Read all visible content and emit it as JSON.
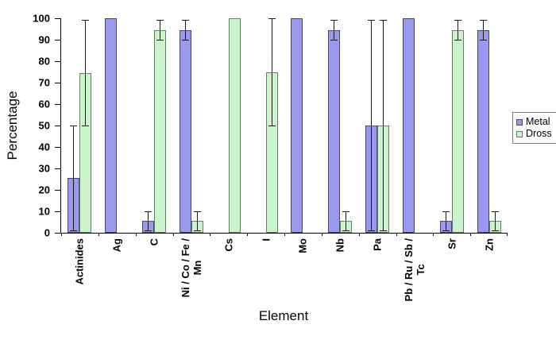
{
  "chart_data": {
    "type": "bar",
    "title": "",
    "xlabel": "Element",
    "ylabel": "Percentage",
    "ylim": [
      0,
      100
    ],
    "ytick_interval": 10,
    "yticks": [
      0,
      10,
      20,
      30,
      40,
      50,
      60,
      70,
      80,
      90,
      100
    ],
    "grid": false,
    "legend_position": "right",
    "error_bar_color": "#1a1a1a",
    "categories": [
      "Actinides",
      "Ag",
      "C",
      "Ni / Co / Fe /\nMn",
      "Cs",
      "I",
      "Mo",
      "Nb",
      "Pa",
      "Pb / Ru / Sb /\nTc",
      "Sr",
      "Zn"
    ],
    "series": [
      {
        "name": "Metal",
        "fill": "#9999EE",
        "border": "#46466E",
        "values": [
          25.5,
          100,
          5.5,
          94.5,
          null,
          null,
          100,
          94.5,
          50,
          100,
          5.5,
          94.5
        ],
        "error_bars": [
          [
            1,
            50
          ],
          null,
          [
            1,
            10
          ],
          [
            90,
            99
          ],
          null,
          null,
          null,
          [
            90,
            99
          ],
          [
            1,
            99
          ],
          null,
          [
            1,
            10
          ],
          [
            90,
            99
          ]
        ]
      },
      {
        "name": "Dross",
        "fill": "#CCF4CC",
        "border": "#5F815F",
        "values": [
          74.5,
          null,
          94.5,
          5.5,
          100,
          75,
          null,
          5.5,
          50,
          null,
          94.5,
          5.5
        ],
        "error_bars": [
          [
            50,
            99
          ],
          null,
          [
            90,
            99
          ],
          [
            1,
            10
          ],
          null,
          [
            50,
            100
          ],
          null,
          [
            1,
            10
          ],
          [
            1,
            99
          ],
          null,
          [
            90,
            99
          ],
          [
            1,
            10
          ]
        ]
      }
    ]
  }
}
